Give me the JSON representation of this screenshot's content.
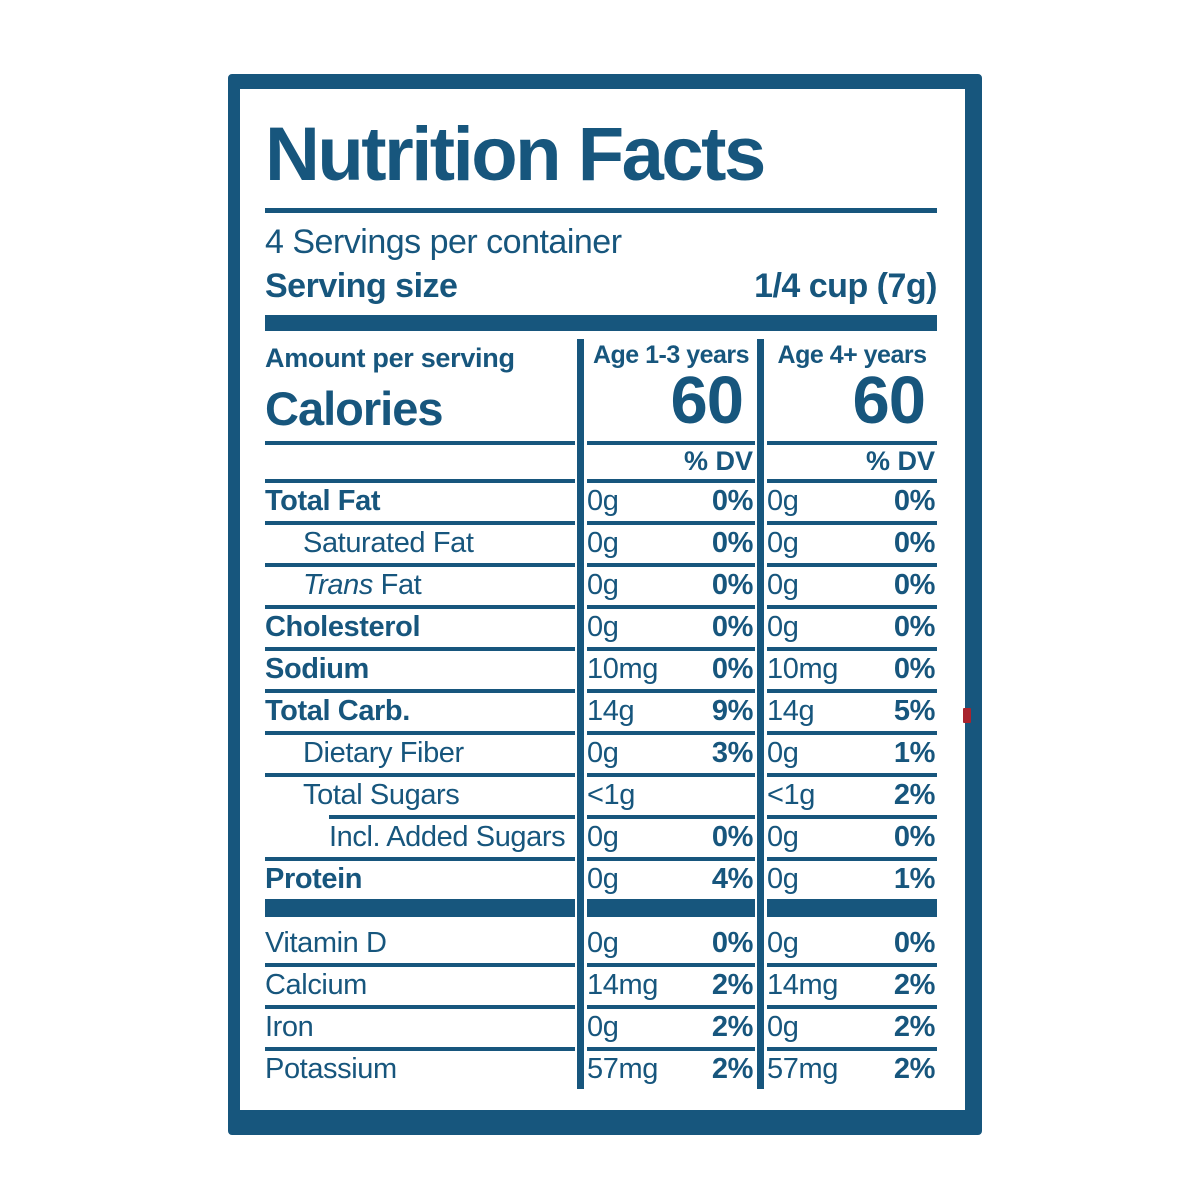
{
  "colors": {
    "brand_blue": "#17567D",
    "background": "#ffffff",
    "artifact_red": "#a8232e"
  },
  "label": {
    "title": "Nutrition Facts",
    "servings_per_container": "4 Servings per container",
    "serving_size_label": "Serving size",
    "serving_size_value": "1/4 cup (7g)",
    "amount_per_serving": "Amount per serving",
    "calories_label": "Calories",
    "columns": [
      {
        "age_header": "Age 1-3 years",
        "calories": "60",
        "dv_header": "% DV"
      },
      {
        "age_header": "Age 4+ years",
        "calories": "60",
        "dv_header": "% DV"
      }
    ],
    "rows": [
      {
        "name": "Total Fat",
        "amount1": "0g",
        "dv1": "0%",
        "amount2": "0g",
        "dv2": "0%"
      },
      {
        "name": "Saturated Fat",
        "amount1": "0g",
        "dv1": "0%",
        "amount2": "0g",
        "dv2": "0%"
      },
      {
        "name_italic": "Trans",
        "name_rest": " Fat",
        "amount1": "0g",
        "dv1": "0%",
        "amount2": "0g",
        "dv2": "0%"
      },
      {
        "name": "Cholesterol",
        "amount1": "0g",
        "dv1": "0%",
        "amount2": "0g",
        "dv2": "0%"
      },
      {
        "name": "Sodium",
        "amount1": "10mg",
        "dv1": "0%",
        "amount2": "10mg",
        "dv2": "0%"
      },
      {
        "name": "Total Carb.",
        "amount1": "14g",
        "dv1": "9%",
        "amount2": "14g",
        "dv2": "5%"
      },
      {
        "name": "Dietary Fiber",
        "amount1": "0g",
        "dv1": "3%",
        "amount2": "0g",
        "dv2": "1%"
      },
      {
        "name": "Total Sugars",
        "amount1": "<1g",
        "dv1": "",
        "amount2": "<1g",
        "dv2": "2%"
      },
      {
        "name": "Incl. Added Sugars",
        "amount1": "0g",
        "dv1": "0%",
        "amount2": "0g",
        "dv2": "0%"
      },
      {
        "name": "Protein",
        "amount1": "0g",
        "dv1": "4%",
        "amount2": "0g",
        "dv2": "1%"
      }
    ],
    "vitamins": [
      {
        "name": "Vitamin D",
        "amount1": "0g",
        "dv1": "0%",
        "amount2": "0g",
        "dv2": "0%"
      },
      {
        "name": "Calcium",
        "amount1": "14mg",
        "dv1": "2%",
        "amount2": "14mg",
        "dv2": "2%"
      },
      {
        "name": "Iron",
        "amount1": "0g",
        "dv1": "2%",
        "amount2": "0g",
        "dv2": "2%"
      },
      {
        "name": "Potassium",
        "amount1": "57mg",
        "dv1": "2%",
        "amount2": "57mg",
        "dv2": "2%"
      }
    ]
  }
}
